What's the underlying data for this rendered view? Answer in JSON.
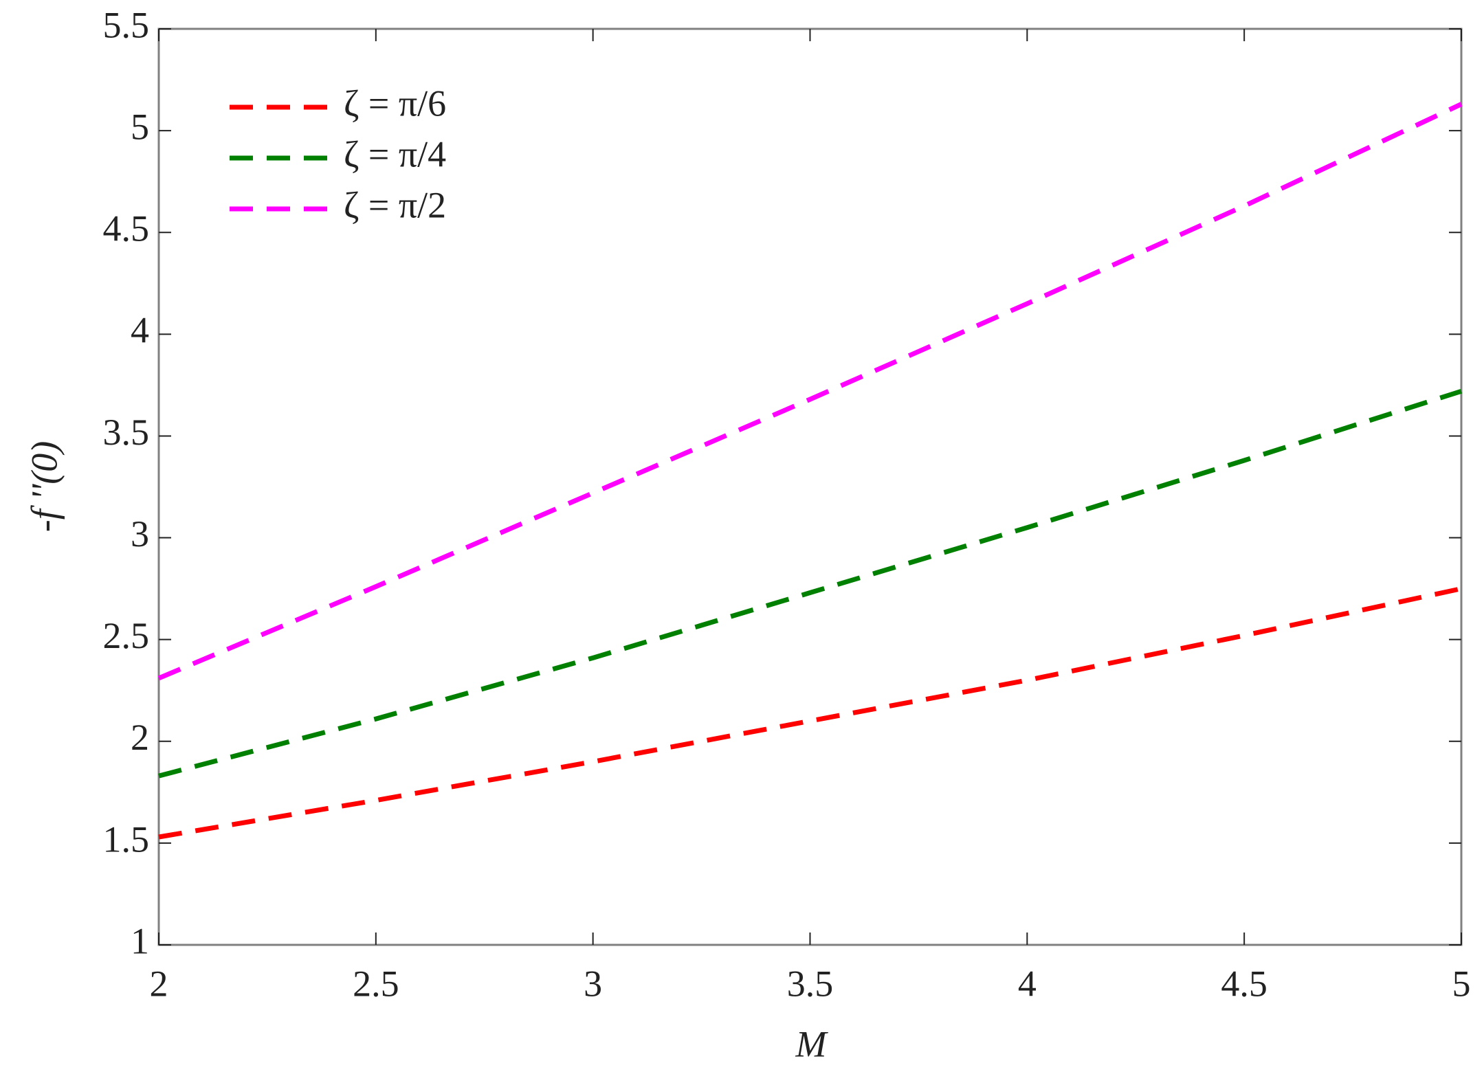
{
  "chart_data": {
    "type": "line",
    "xlabel": "M",
    "ylabel": "-f ''(0)",
    "x": [
      2,
      2.5,
      3,
      3.5,
      4,
      4.5,
      5
    ],
    "series": [
      {
        "name": "ζ = π/6",
        "color": "#ff0000",
        "values": [
          1.53,
          1.71,
          1.9,
          2.1,
          2.3,
          2.52,
          2.75
        ]
      },
      {
        "name": "ζ = π/4",
        "color": "#008000",
        "values": [
          1.83,
          2.11,
          2.41,
          2.73,
          3.05,
          3.38,
          3.72
        ]
      },
      {
        "name": "ζ = π/2",
        "color": "#ff00ff",
        "values": [
          2.31,
          2.76,
          3.22,
          3.68,
          4.15,
          4.63,
          5.13
        ]
      }
    ],
    "xlim": [
      2,
      5
    ],
    "xticks": [
      2,
      2.5,
      3,
      3.5,
      4,
      4.5,
      5
    ],
    "ylim": [
      1,
      5.5
    ],
    "yticks": [
      1,
      1.5,
      2,
      2.5,
      3,
      3.5,
      4,
      4.5,
      5,
      5.5
    ],
    "legend": "upper-left",
    "dashed": true
  }
}
